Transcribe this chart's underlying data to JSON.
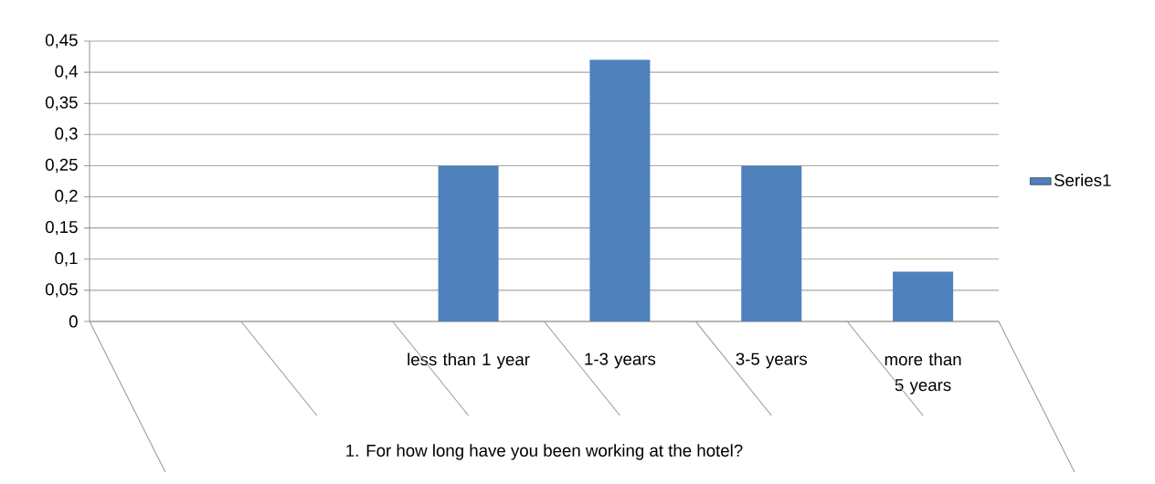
{
  "chart_data": {
    "type": "bar",
    "xlabel": "1. For how long have you been working at the hotel?",
    "categories": [
      null,
      null,
      "less than 1 year",
      "1-3 years",
      "3-5 years",
      "more than 5 years"
    ],
    "series": [
      {
        "name": "Series1",
        "color": "#4f81bd",
        "values": [
          null,
          null,
          0.25,
          0.42,
          0.25,
          0.08
        ]
      }
    ],
    "ylim": [
      0,
      0.45
    ],
    "yticks": [
      0,
      {
        "value": 0.05,
        "label": "0,05"
      },
      {
        "value": 0.1,
        "label": "0,1"
      },
      {
        "value": 0.15,
        "label": "0,15"
      },
      {
        "value": 0.2,
        "label": "0,2"
      },
      {
        "value": 0.25,
        "label": "0,25"
      },
      {
        "value": 0.3,
        "label": "0,3"
      },
      {
        "value": 0.35,
        "label": "0,35"
      },
      {
        "value": 0.4,
        "label": "0,4"
      },
      {
        "value": 0.45,
        "label": "0,45"
      }
    ],
    "grid": "y",
    "legend": "right"
  }
}
